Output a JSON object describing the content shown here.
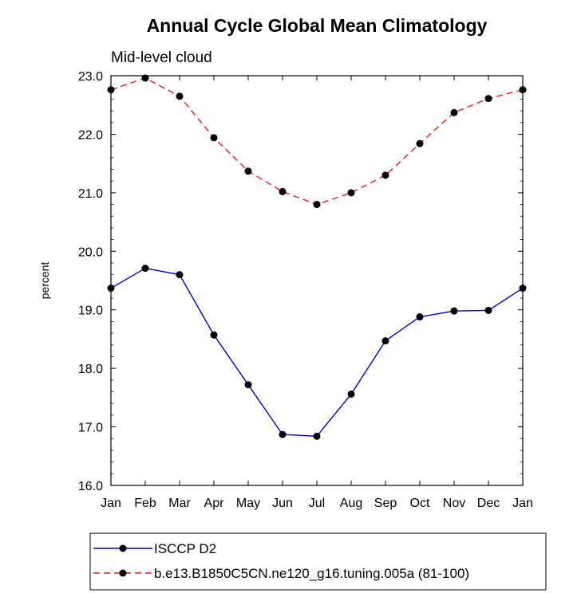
{
  "chart_data": {
    "type": "line",
    "title": "Annual Cycle Global Mean Climatology",
    "subtitle": "Mid-level cloud",
    "xlabel": "",
    "ylabel": "percent",
    "categories": [
      "Jan",
      "Feb",
      "Mar",
      "Apr",
      "May",
      "Jun",
      "Jul",
      "Aug",
      "Sep",
      "Oct",
      "Nov",
      "Dec",
      "Jan"
    ],
    "ylim": [
      16.0,
      23.0
    ],
    "yticks": [
      "16.0",
      "17.0",
      "18.0",
      "19.0",
      "20.0",
      "21.0",
      "22.0",
      "23.0"
    ],
    "legend_position": "bottom",
    "series": [
      {
        "name": "ISCCP D2",
        "color": "#0000cc",
        "style": "solid",
        "values": [
          19.37,
          19.71,
          19.6,
          18.57,
          17.72,
          16.87,
          16.84,
          17.56,
          18.47,
          18.88,
          18.98,
          18.99,
          19.37
        ]
      },
      {
        "name": "b.e13.B1850C5CN.ne120_g16.tuning.005a (81-100)",
        "color": "#e8191e",
        "style": "dashed",
        "values": [
          22.76,
          22.96,
          22.65,
          21.94,
          21.37,
          21.02,
          20.8,
          21.0,
          21.3,
          21.84,
          22.37,
          22.61,
          22.76
        ]
      }
    ]
  }
}
